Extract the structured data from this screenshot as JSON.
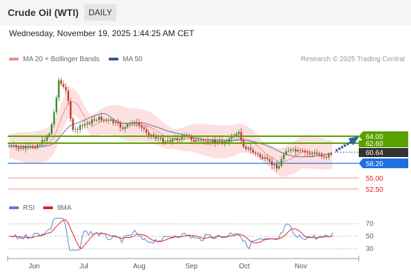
{
  "header": {
    "title": "Crude Oil (WTI)",
    "tab_label": "DAILY"
  },
  "date_text": "Wednesday, November 19, 2025 1:44:25 AM CET",
  "legend_main": [
    {
      "label": "MA 20 + Bollinger Bands",
      "color": "#f08b8b"
    },
    {
      "label": "MA 50",
      "color": "#2f5597"
    }
  ],
  "copyright": "Research © 2025 Trading Central",
  "legend_rsi": [
    {
      "label": "RSI",
      "color": "#5b7fd6"
    },
    {
      "label": "9MA",
      "color": "#e02020"
    }
  ],
  "price_levels": [
    {
      "value": "64.00",
      "kind": "resistance",
      "color": "#5aa100"
    },
    {
      "value": "62.60",
      "kind": "resistance",
      "color": "#5aa100"
    },
    {
      "value": "60.64",
      "kind": "last",
      "color": "#333333"
    },
    {
      "value": "58.20",
      "kind": "pivot",
      "color": "#1f6fe0"
    },
    {
      "value": "55.00",
      "kind": "support",
      "color": "#e02020"
    },
    {
      "value": "52.50",
      "kind": "support",
      "color": "#e02020"
    }
  ],
  "rsi_ticks": [
    "70",
    "50",
    "30"
  ],
  "x_labels": [
    "Jun",
    "Jul",
    "Aug",
    "Sep",
    "Oct",
    "Nov"
  ],
  "colors": {
    "up": "#3a8a2e",
    "down": "#c0392b",
    "band": "#fde0e0",
    "ma20": "#f08b8b",
    "ma50": "#5a6fa8"
  }
}
